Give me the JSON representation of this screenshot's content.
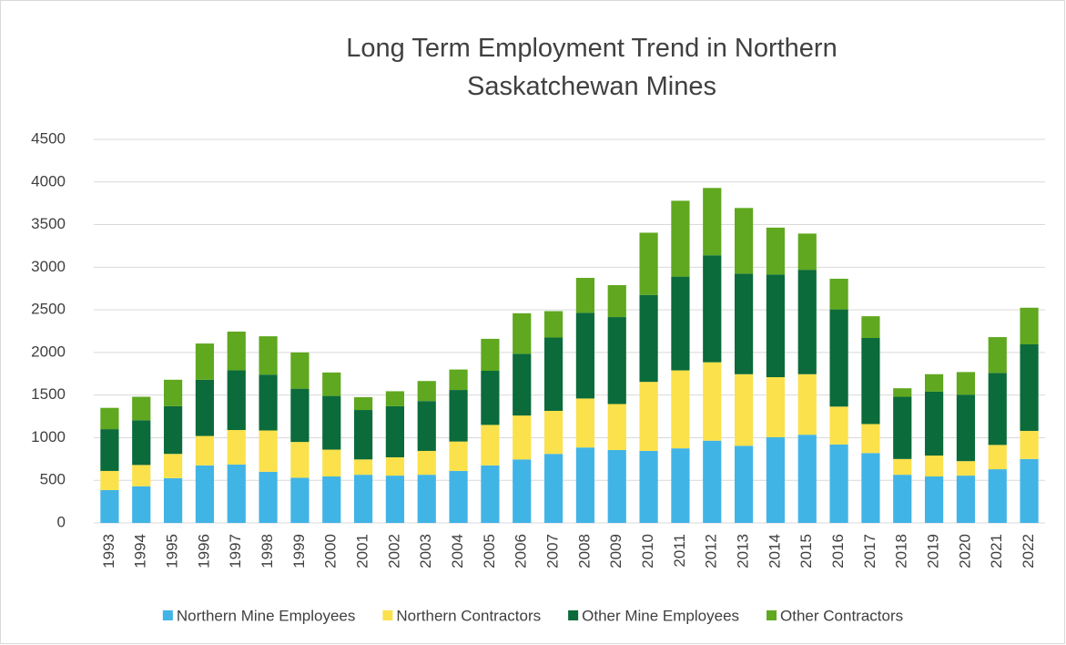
{
  "chart_data": {
    "type": "stacked_bar",
    "title": "Long Term Employment Trend in Northern Saskatchewan Mines",
    "categories": [
      "1993",
      "1994",
      "1995",
      "1996",
      "1997",
      "1998",
      "1999",
      "2000",
      "2001",
      "2002",
      "2003",
      "2004",
      "2005",
      "2006",
      "2007",
      "2008",
      "2009",
      "2010",
      "2011",
      "2012",
      "2013",
      "2014",
      "2015",
      "2016",
      "2017",
      "2018",
      "2019",
      "2020",
      "2021",
      "2022"
    ],
    "series": [
      {
        "name": "Northern Mine Employees",
        "color": "#41b4e6",
        "values": [
          385,
          430,
          525,
          675,
          685,
          600,
          530,
          545,
          565,
          555,
          565,
          610,
          675,
          745,
          810,
          885,
          855,
          845,
          875,
          965,
          905,
          1005,
          1035,
          920,
          820,
          565,
          545,
          555,
          630,
          750
        ]
      },
      {
        "name": "Northern Contractors",
        "color": "#fbe14b",
        "values": [
          225,
          250,
          285,
          345,
          405,
          485,
          420,
          315,
          180,
          215,
          280,
          345,
          475,
          515,
          505,
          575,
          540,
          810,
          915,
          920,
          840,
          705,
          710,
          445,
          340,
          185,
          245,
          170,
          285,
          330
        ]
      },
      {
        "name": "Other Mine Employees",
        "color": "#0b6b3a",
        "values": [
          490,
          525,
          560,
          660,
          700,
          655,
          625,
          630,
          580,
          600,
          585,
          605,
          635,
          725,
          860,
          1005,
          1020,
          1020,
          1100,
          1255,
          1180,
          1205,
          1225,
          1140,
          1010,
          730,
          750,
          780,
          845,
          1015
        ]
      },
      {
        "name": "Other Contractors",
        "color": "#5fa81f",
        "values": [
          250,
          275,
          310,
          425,
          455,
          450,
          425,
          275,
          150,
          175,
          235,
          240,
          375,
          475,
          310,
          410,
          375,
          730,
          890,
          790,
          770,
          550,
          425,
          360,
          255,
          100,
          205,
          265,
          420,
          430
        ]
      }
    ],
    "ylim": [
      0,
      4500
    ],
    "yticks": [
      0,
      500,
      1000,
      1500,
      2000,
      2500,
      3000,
      3500,
      4000,
      4500
    ],
    "grid": true,
    "legend": "bottom"
  }
}
